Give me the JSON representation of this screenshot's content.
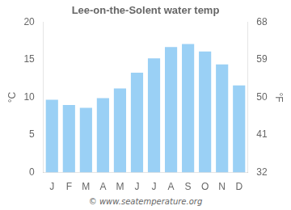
{
  "chart_data": {
    "type": "bar",
    "title": "Lee-on-the-Solent water temp",
    "categories": [
      "J",
      "F",
      "M",
      "A",
      "M",
      "J",
      "J",
      "A",
      "S",
      "O",
      "N",
      "D"
    ],
    "values": [
      9.7,
      9.0,
      8.6,
      9.9,
      11.2,
      13.3,
      15.2,
      16.7,
      17.1,
      16.1,
      14.4,
      11.6
    ],
    "ylim": [
      0,
      20
    ],
    "yticks": [
      0,
      5,
      10,
      15,
      20
    ],
    "y2lim": [
      32,
      68
    ],
    "y2ticks": [
      32,
      41,
      50,
      59,
      68
    ],
    "ylabel": "°C",
    "y2label": "°F",
    "annotation": "© www.seatemperature.org",
    "grid": false
  }
}
